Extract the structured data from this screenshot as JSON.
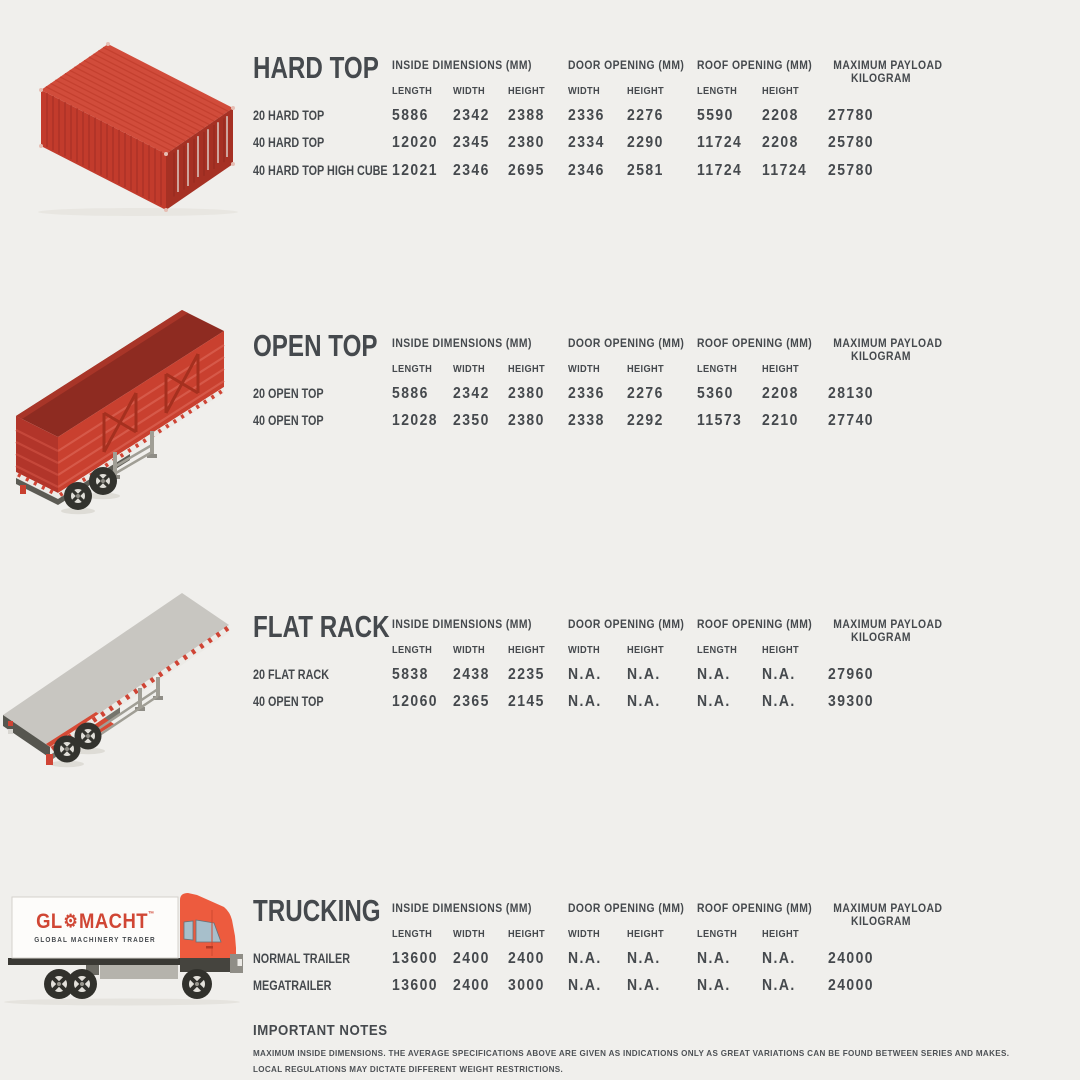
{
  "colors": {
    "background": "#f0efec",
    "text": "#45494d",
    "container_red": "#c9402f",
    "container_red_dark": "#a63124",
    "truck_orange": "#ed5b3e",
    "logo_red": "#d04634"
  },
  "table_columns": {
    "group_headers": [
      "INSIDE DIMENSIONS (MM)",
      "DOOR OPENING (MM)",
      "ROOF OPENING (MM)"
    ],
    "payload_header": [
      "MAXIMUM PAYLOAD",
      "KILOGRAM"
    ],
    "sub_headers": [
      "LENGTH",
      "WIDTH",
      "HEIGHT",
      "WIDTH",
      "HEIGHT",
      "LENGTH",
      "HEIGHT"
    ]
  },
  "sections": [
    {
      "title": "HARD TOP",
      "illustration": "hard-top-container",
      "rows": [
        {
          "label": "20 HARD TOP",
          "values": [
            "5886",
            "2342",
            "2388",
            "2336",
            "2276",
            "5590",
            "2208",
            "27780"
          ]
        },
        {
          "label": "40 HARD TOP",
          "values": [
            "12020",
            "2345",
            "2380",
            "2334",
            "2290",
            "11724",
            "2208",
            "25780"
          ]
        },
        {
          "label": "40 HARD TOP HIGH CUBE",
          "values": [
            "12021",
            "2346",
            "2695",
            "2346",
            "2581",
            "11724",
            "11724",
            "25780"
          ]
        }
      ]
    },
    {
      "title": "OPEN TOP",
      "illustration": "open-top-trailer",
      "rows": [
        {
          "label": "20 OPEN TOP",
          "values": [
            "5886",
            "2342",
            "2380",
            "2336",
            "2276",
            "5360",
            "2208",
            "28130"
          ]
        },
        {
          "label": "40 OPEN TOP",
          "values": [
            "12028",
            "2350",
            "2380",
            "2338",
            "2292",
            "11573",
            "2210",
            "27740"
          ]
        }
      ]
    },
    {
      "title": "FLAT RACK",
      "illustration": "flat-rack-trailer",
      "rows": [
        {
          "label": "20 FLAT RACK",
          "values": [
            "5838",
            "2438",
            "2235",
            "N.A.",
            "N.A.",
            "N.A.",
            "N.A.",
            "27960"
          ]
        },
        {
          "label": "40 OPEN TOP",
          "values": [
            "12060",
            "2365",
            "2145",
            "N.A.",
            "N.A.",
            "N.A.",
            "N.A.",
            "39300"
          ]
        }
      ]
    },
    {
      "title": "TRUCKING",
      "illustration": "glomacht-truck",
      "rows": [
        {
          "label": "NORMAL TRAILER",
          "values": [
            "13600",
            "2400",
            "2400",
            "N.A.",
            "N.A.",
            "N.A.",
            "N.A.",
            "24000"
          ]
        },
        {
          "label": "MEGATRAILER",
          "values": [
            "13600",
            "2400",
            "3000",
            "N.A.",
            "N.A.",
            "N.A.",
            "N.A.",
            "24000"
          ]
        }
      ]
    }
  ],
  "logo": {
    "brand_left": "GL",
    "gear": "⚙",
    "brand_right": "MACHT",
    "trademark": "™",
    "tagline": "GLOBAL MACHINERY TRADER"
  },
  "notes": {
    "title": "IMPORTANT NOTES",
    "lines": [
      "MAXIMUM INSIDE DIMENSIONS. THE AVERAGE SPECIFICATIONS ABOVE ARE GIVEN AS INDICATIONS ONLY AS GREAT VARIATIONS CAN BE FOUND BETWEEN SERIES AND MAKES.",
      "LOCAL REGULATIONS MAY DICTATE DIFFERENT WEIGHT RESTRICTIONS."
    ]
  }
}
